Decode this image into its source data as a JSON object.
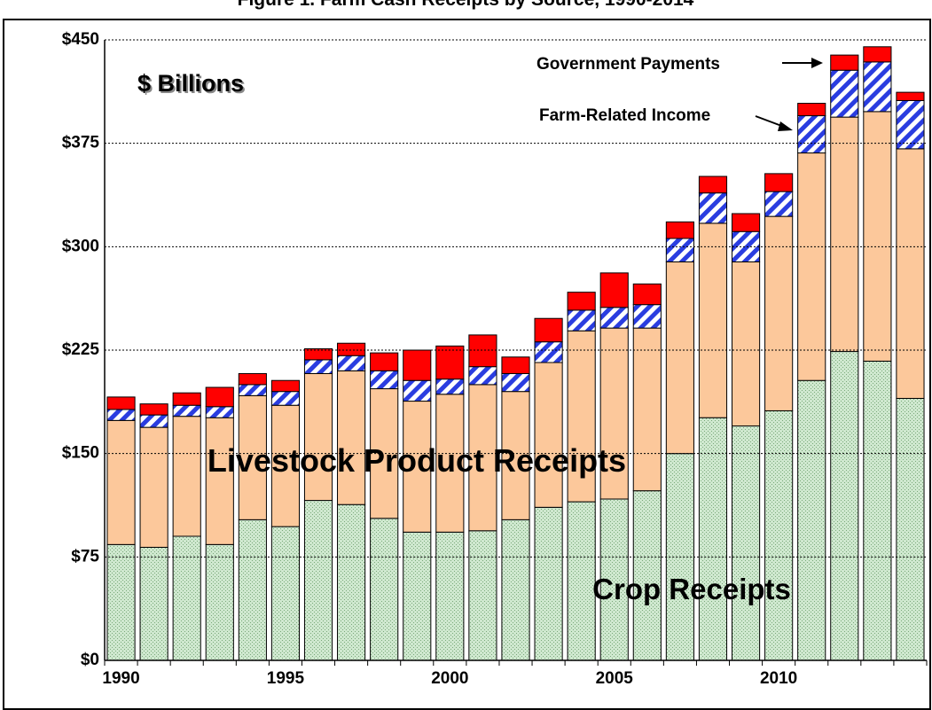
{
  "chart_data": {
    "type": "stacked_bar",
    "title": "Figure 1. Farm Cash Receipts by Source, 1990-2014",
    "unit_label": "$ Billions",
    "categories": [
      "1990",
      null,
      null,
      null,
      null,
      "1995",
      null,
      null,
      null,
      null,
      "2000",
      null,
      null,
      null,
      null,
      "2005",
      null,
      null,
      null,
      null,
      "2010",
      null,
      null,
      null,
      null
    ],
    "series": [
      {
        "name": "Crop Receipts",
        "color": "#cfe8cf",
        "values": [
          84,
          82,
          90,
          84,
          102,
          97,
          116,
          113,
          103,
          93,
          93,
          94,
          102,
          111,
          115,
          117,
          123,
          150,
          176,
          170,
          181,
          203,
          224,
          217,
          190
        ]
      },
      {
        "name": "Livestock Product Receipts",
        "color": "#fcc89b",
        "values": [
          90,
          87,
          87,
          92,
          90,
          88,
          92,
          97,
          94,
          95,
          100,
          106,
          93,
          105,
          124,
          124,
          118,
          139,
          141,
          119,
          141,
          165,
          170,
          181,
          181
        ]
      },
      {
        "name": "Farm-Related Income",
        "color": "#2a3de0",
        "values": [
          8,
          9,
          8,
          8,
          8,
          10,
          10,
          11,
          13,
          15,
          11,
          13,
          13,
          15,
          15,
          15,
          17,
          17,
          22,
          22,
          18,
          27,
          34,
          36,
          35
        ]
      },
      {
        "name": "Government Payments",
        "color": "#ff0000",
        "values": [
          9,
          8,
          9,
          14,
          8,
          8,
          8,
          9,
          13,
          22,
          24,
          23,
          12,
          17,
          13,
          25,
          15,
          12,
          12,
          13,
          13,
          9,
          11,
          11,
          6
        ]
      }
    ],
    "ylim": [
      0,
      450
    ],
    "yticks": [
      {
        "value": 0,
        "label": "$0"
      },
      {
        "value": 75,
        "label": "$75"
      },
      {
        "value": 150,
        "label": "$150"
      },
      {
        "value": 225,
        "label": "$225"
      },
      {
        "value": 300,
        "label": "$300"
      },
      {
        "value": 375,
        "label": "$375"
      },
      {
        "value": 450,
        "label": "$450"
      }
    ],
    "grid": true
  }
}
